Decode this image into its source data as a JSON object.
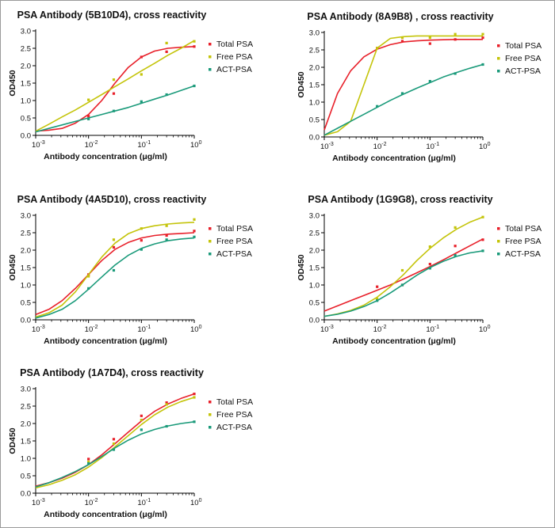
{
  "colors": {
    "total_psa": "#e8202a",
    "free_psa": "#c4c40a",
    "act_psa": "#1a9a7a"
  },
  "chart_data": [
    {
      "type": "line",
      "title": "PSA Antibody (5B10D4), cross reactivity",
      "xlabel": "Antibody concentration (μg/ml)",
      "ylabel": "OD450",
      "xscale": "log",
      "xlim": [
        0.001,
        1
      ],
      "ylim": [
        0,
        3.0
      ],
      "xtick_base": "10",
      "xtick_exponents": [
        "-3",
        "-2",
        "-1",
        "0"
      ],
      "yticks": [
        "0.0",
        "0.5",
        "1.0",
        "1.5",
        "2.0",
        "2.5",
        "3.0"
      ],
      "legend_position": "right",
      "series": [
        {
          "name": "Total PSA",
          "color": "#e8202a",
          "x": [
            0.01,
            0.03,
            0.1,
            0.3,
            1
          ],
          "y": [
            0.55,
            1.2,
            2.25,
            2.4,
            2.55
          ],
          "curve_y": [
            0.12,
            0.15,
            0.2,
            0.35,
            0.6,
            1.0,
            1.5,
            1.95,
            2.25,
            2.42,
            2.5,
            2.53,
            2.55
          ]
        },
        {
          "name": "Free PSA",
          "color": "#c4c40a",
          "x": [
            0.01,
            0.03,
            0.1,
            0.3,
            1
          ],
          "y": [
            1.02,
            1.6,
            1.75,
            2.65,
            2.7
          ],
          "curve_y": [
            0.12,
            0.32,
            0.53,
            0.73,
            0.95,
            1.17,
            1.4,
            1.62,
            1.85,
            2.07,
            2.3,
            2.5,
            2.72
          ]
        },
        {
          "name": "ACT-PSA",
          "color": "#1a9a7a",
          "x": [
            0.01,
            0.03,
            0.1,
            0.3,
            1
          ],
          "y": [
            0.47,
            0.7,
            0.97,
            1.17,
            1.42
          ],
          "curve_y": [
            0.1,
            0.2,
            0.3,
            0.4,
            0.5,
            0.6,
            0.7,
            0.8,
            0.92,
            1.04,
            1.16,
            1.29,
            1.42
          ]
        }
      ]
    },
    {
      "type": "line",
      "title": "PSA Antibody (8A9B8) , cross reactivity",
      "xlabel": "Antibody concentration (μg/ml)",
      "ylabel": "OD450",
      "xscale": "log",
      "xlim": [
        0.001,
        1
      ],
      "ylim": [
        0,
        3.0
      ],
      "xtick_base": "10",
      "xtick_exponents": [
        "-3",
        "-2",
        "-1",
        "0"
      ],
      "yticks": [
        "0.0",
        "0.5",
        "1.0",
        "1.5",
        "2.0",
        "2.5",
        "3.0"
      ],
      "legend_position": "right",
      "series": [
        {
          "name": "Total PSA",
          "color": "#e8202a",
          "x": [
            0.01,
            0.03,
            0.1,
            0.3,
            1
          ],
          "y": [
            2.55,
            2.75,
            2.68,
            2.8,
            2.85
          ],
          "curve_y": [
            0.2,
            1.25,
            1.9,
            2.3,
            2.52,
            2.65,
            2.73,
            2.76,
            2.78,
            2.79,
            2.8,
            2.8,
            2.8
          ]
        },
        {
          "name": "Free PSA",
          "color": "#c4c40a",
          "x": [
            0.01,
            0.03,
            0.1,
            0.3,
            1
          ],
          "y": [
            2.55,
            2.85,
            2.85,
            2.95,
            2.95
          ],
          "curve_y": [
            0.05,
            0.15,
            0.45,
            1.5,
            2.55,
            2.83,
            2.88,
            2.9,
            2.9,
            2.9,
            2.9,
            2.9,
            2.9
          ]
        },
        {
          "name": "ACT-PSA",
          "color": "#1a9a7a",
          "x": [
            0.01,
            0.03,
            0.1,
            0.3,
            1
          ],
          "y": [
            0.88,
            1.25,
            1.6,
            1.82,
            2.08
          ],
          "curve_y": [
            0.05,
            0.25,
            0.45,
            0.65,
            0.85,
            1.05,
            1.23,
            1.4,
            1.56,
            1.72,
            1.85,
            1.97,
            2.08
          ]
        }
      ]
    },
    {
      "type": "line",
      "title": "PSA Antibody (4A5D10), cross reactivity",
      "xlabel": "Antibody concentration (μg/ml)",
      "ylabel": "OD450",
      "xscale": "log",
      "xlim": [
        0.001,
        1
      ],
      "ylim": [
        0,
        3.0
      ],
      "xtick_base": "10",
      "xtick_exponents": [
        "-3",
        "-2",
        "-1",
        "0"
      ],
      "yticks": [
        "0.0",
        "0.5",
        "1.0",
        "1.5",
        "2.0",
        "2.5",
        "3.0"
      ],
      "legend_position": "right",
      "series": [
        {
          "name": "Total PSA",
          "color": "#e8202a",
          "x": [
            0.01,
            0.03,
            0.1,
            0.3,
            1
          ],
          "y": [
            1.3,
            2.08,
            2.28,
            2.42,
            2.55
          ],
          "curve_y": [
            0.15,
            0.3,
            0.55,
            0.9,
            1.3,
            1.7,
            2.02,
            2.22,
            2.35,
            2.42,
            2.46,
            2.48,
            2.5
          ]
        },
        {
          "name": "Free PSA",
          "color": "#c4c40a",
          "x": [
            0.01,
            0.03,
            0.1,
            0.3,
            1
          ],
          "y": [
            1.25,
            2.3,
            2.62,
            2.7,
            2.88
          ],
          "curve_y": [
            0.08,
            0.2,
            0.42,
            0.8,
            1.3,
            1.8,
            2.2,
            2.47,
            2.62,
            2.7,
            2.75,
            2.78,
            2.8
          ]
        },
        {
          "name": "ACT-PSA",
          "color": "#1a9a7a",
          "x": [
            0.01,
            0.03,
            0.1,
            0.3,
            1
          ],
          "y": [
            0.9,
            1.42,
            2.02,
            2.3,
            2.38
          ],
          "curve_y": [
            0.05,
            0.15,
            0.3,
            0.55,
            0.88,
            1.23,
            1.57,
            1.85,
            2.05,
            2.18,
            2.27,
            2.32,
            2.35
          ]
        }
      ]
    },
    {
      "type": "line",
      "title": "PSA Antibody (1G9G8), cross reactivity",
      "xlabel": "Antibody concentration (μg/ml)",
      "ylabel": "OD450",
      "xscale": "log",
      "xlim": [
        0.001,
        1
      ],
      "ylim": [
        0,
        3.0
      ],
      "xtick_base": "10",
      "xtick_exponents": [
        "-3",
        "-2",
        "-1",
        "0"
      ],
      "yticks": [
        "0.0",
        "0.5",
        "1.0",
        "1.5",
        "2.0",
        "2.5",
        "3.0"
      ],
      "legend_position": "right",
      "series": [
        {
          "name": "Total PSA",
          "color": "#e8202a",
          "x": [
            0.01,
            0.03,
            0.1,
            0.3,
            1
          ],
          "y": [
            0.95,
            1.0,
            1.6,
            2.12,
            2.3
          ],
          "curve_y": [
            0.25,
            0.4,
            0.55,
            0.7,
            0.85,
            1.0,
            1.17,
            1.35,
            1.53,
            1.72,
            1.92,
            2.12,
            2.32
          ]
        },
        {
          "name": "Free PSA",
          "color": "#c4c40a",
          "x": [
            0.01,
            0.03,
            0.1,
            0.3,
            1
          ],
          "y": [
            0.6,
            1.42,
            2.1,
            2.65,
            2.95
          ],
          "curve_y": [
            0.1,
            0.17,
            0.27,
            0.42,
            0.65,
            0.95,
            1.3,
            1.7,
            2.05,
            2.35,
            2.6,
            2.8,
            2.95
          ]
        },
        {
          "name": "ACT-PSA",
          "color": "#1a9a7a",
          "x": [
            0.01,
            0.03,
            0.1,
            0.3,
            1
          ],
          "y": [
            0.55,
            1.0,
            1.48,
            1.85,
            1.98
          ],
          "curve_y": [
            0.1,
            0.16,
            0.25,
            0.38,
            0.55,
            0.77,
            1.02,
            1.28,
            1.5,
            1.68,
            1.82,
            1.92,
            1.98
          ]
        }
      ]
    },
    {
      "type": "line",
      "title": "PSA Antibody (1A7D4), cross reactivity",
      "xlabel": "Antibody concentration (μg/ml)",
      "ylabel": "OD450",
      "xscale": "log",
      "xlim": [
        0.001,
        1
      ],
      "ylim": [
        0,
        3.0
      ],
      "xtick_base": "10",
      "xtick_exponents": [
        "-3",
        "-2",
        "-1",
        "0"
      ],
      "yticks": [
        "0.0",
        "0.5",
        "1.0",
        "1.5",
        "2.0",
        "2.5",
        "3.0"
      ],
      "legend_position": "right",
      "series": [
        {
          "name": "Total PSA",
          "color": "#e8202a",
          "x": [
            0.01,
            0.03,
            0.1,
            0.3,
            1
          ],
          "y": [
            0.98,
            1.55,
            2.22,
            2.6,
            2.85
          ],
          "curve_y": [
            0.2,
            0.3,
            0.43,
            0.6,
            0.82,
            1.1,
            1.42,
            1.75,
            2.07,
            2.35,
            2.56,
            2.72,
            2.85
          ]
        },
        {
          "name": "Free PSA",
          "color": "#c4c40a",
          "x": [
            0.01,
            0.03,
            0.1,
            0.3,
            1
          ],
          "y": [
            0.9,
            1.42,
            2.1,
            2.55,
            2.75
          ],
          "curve_y": [
            0.15,
            0.24,
            0.37,
            0.53,
            0.75,
            1.02,
            1.33,
            1.65,
            1.97,
            2.25,
            2.47,
            2.63,
            2.75
          ]
        },
        {
          "name": "ACT-PSA",
          "color": "#1a9a7a",
          "x": [
            0.01,
            0.03,
            0.1,
            0.3,
            1
          ],
          "y": [
            0.85,
            1.25,
            1.82,
            1.92,
            2.05
          ],
          "curve_y": [
            0.18,
            0.3,
            0.45,
            0.62,
            0.82,
            1.05,
            1.3,
            1.52,
            1.7,
            1.83,
            1.93,
            2.0,
            2.05
          ]
        }
      ]
    }
  ]
}
